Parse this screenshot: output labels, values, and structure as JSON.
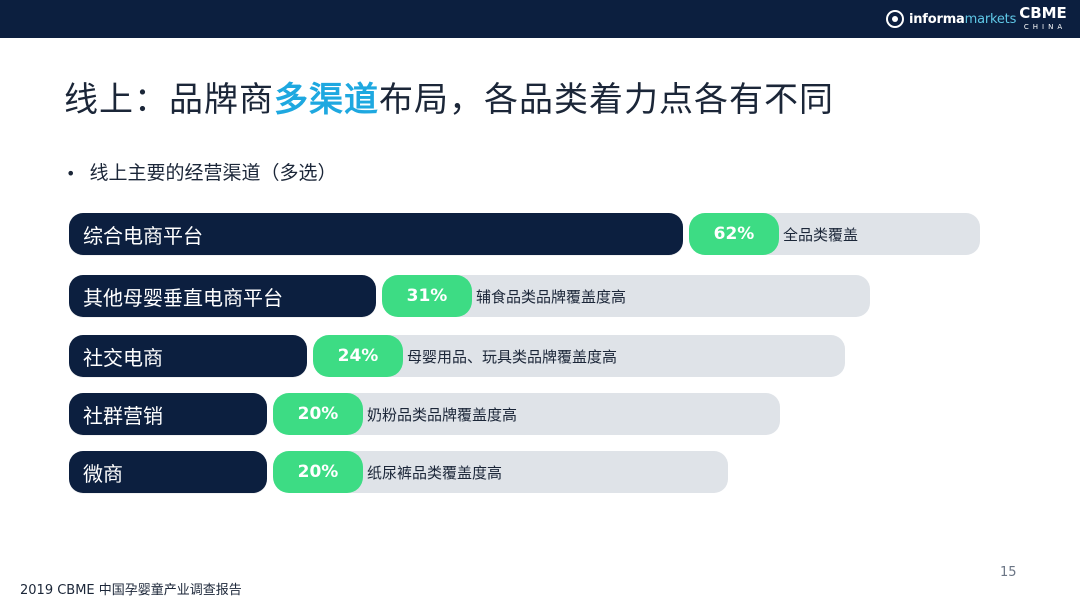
{
  "header": {
    "informa_bold": "informa",
    "informa_light": "markets",
    "cbme_main": "CBME",
    "cbme_sub": "CHINA"
  },
  "title": {
    "part1": "线上：品牌商",
    "highlight": "多渠道",
    "part2": "布局，各品类着力点各有不同"
  },
  "subtitle": {
    "bullet": "•",
    "text": "线上主要的经营渠道（多选）"
  },
  "chart_data": {
    "type": "bar",
    "orientation": "horizontal",
    "categories": [
      "综合电商平台",
      "其他母婴垂直电商平台",
      "社交电商",
      "社群营销",
      "微商"
    ],
    "values": [
      62,
      31,
      24,
      20,
      20
    ],
    "value_labels": [
      "62%",
      "31%",
      "24%",
      "20%",
      "20%"
    ],
    "notes": [
      "全品类覆盖",
      "辅食品类品牌覆盖度高",
      "母婴用品、玩具类品牌覆盖度高",
      "奶粉品类品牌覆盖度高",
      "纸尿裤品类覆盖度高"
    ],
    "colors": {
      "bar": "#0c1f3f",
      "value_badge": "#3ddc84",
      "note_bg": "#dfe3e8"
    }
  },
  "footer": {
    "page_number": "15",
    "source": "2019 CBME 中国孕婴童产业调查报告"
  },
  "colors": {
    "topbar": "#0c1f3f",
    "accent": "#1ea8e0"
  }
}
